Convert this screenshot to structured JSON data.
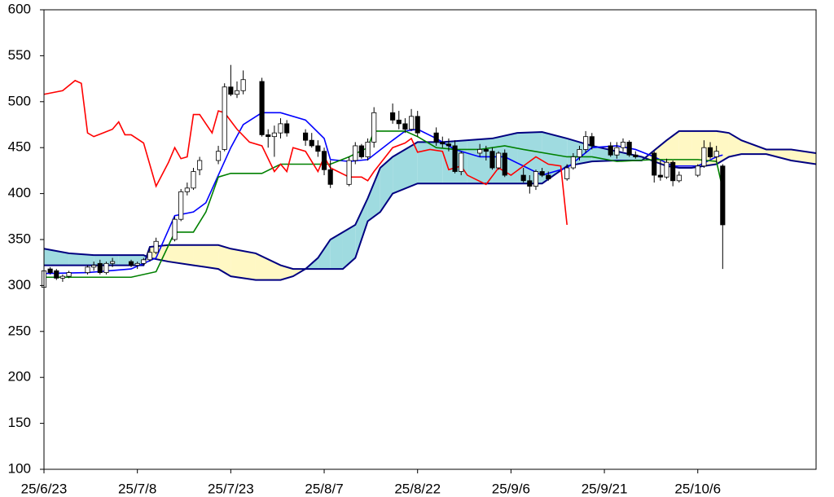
{
  "chart_data": {
    "type": "candlestick",
    "xlim": [
      0,
      124
    ],
    "xticks": [
      {
        "value": 0,
        "label": "25/6/23"
      },
      {
        "value": 15,
        "label": "25/7/8"
      },
      {
        "value": 30,
        "label": "25/7/23"
      },
      {
        "value": 45,
        "label": "25/8/7"
      },
      {
        "value": 60,
        "label": "25/8/22"
      },
      {
        "value": 75,
        "label": "25/9/6"
      },
      {
        "value": 90,
        "label": "25/9/21"
      },
      {
        "value": 105,
        "label": "25/10/6"
      }
    ],
    "ylim": [
      100,
      600
    ],
    "yticks": [
      100,
      150,
      200,
      250,
      300,
      350,
      400,
      450,
      500,
      550,
      600
    ],
    "up_color": "#ffffff",
    "down_color": "#000000",
    "x": [
      0,
      1,
      2,
      3,
      4,
      7,
      8,
      9,
      10,
      11,
      14,
      15,
      16,
      17,
      18,
      21,
      22,
      23,
      24,
      25,
      28,
      29,
      30,
      31,
      32,
      35,
      36,
      37,
      38,
      39,
      42,
      43,
      44,
      45,
      46,
      49,
      50,
      51,
      52,
      53,
      56,
      57,
      58,
      59,
      60,
      63,
      64,
      65,
      66,
      67,
      70,
      71,
      72,
      73,
      74,
      77,
      78,
      79,
      80,
      81,
      84,
      85,
      86,
      87,
      88,
      91,
      92,
      93,
      94,
      95,
      98,
      99,
      100,
      101,
      102,
      105,
      106,
      107,
      108,
      109
    ],
    "open": [
      298,
      318,
      316,
      308,
      310,
      314,
      320,
      324,
      314,
      324,
      326,
      322,
      324,
      328,
      336,
      350,
      372,
      402,
      406,
      426,
      436,
      448,
      516,
      508,
      512,
      522,
      464,
      462,
      466,
      476,
      466,
      458,
      452,
      446,
      426,
      410,
      436,
      452,
      440,
      456,
      488,
      480,
      476,
      470,
      484,
      466,
      456,
      454,
      452,
      424,
      444,
      448,
      446,
      428,
      444,
      420,
      414,
      408,
      424,
      420,
      416,
      428,
      440,
      448,
      462,
      452,
      442,
      450,
      456,
      442,
      444,
      420,
      418,
      434,
      414,
      420,
      430,
      450,
      440,
      430
    ],
    "high": [
      318,
      320,
      318,
      312,
      316,
      322,
      326,
      328,
      326,
      330,
      328,
      326,
      330,
      340,
      352,
      375,
      405,
      412,
      428,
      440,
      452,
      520,
      540,
      522,
      534,
      526,
      470,
      474,
      482,
      480,
      470,
      466,
      458,
      450,
      436,
      440,
      456,
      454,
      460,
      494,
      498,
      490,
      482,
      492,
      490,
      472,
      462,
      460,
      458,
      446,
      454,
      452,
      450,
      446,
      448,
      428,
      420,
      426,
      428,
      424,
      432,
      444,
      452,
      468,
      466,
      456,
      456,
      460,
      458,
      446,
      446,
      436,
      438,
      436,
      424,
      432,
      458,
      456,
      452,
      432
    ],
    "low": [
      296,
      312,
      306,
      304,
      308,
      312,
      316,
      312,
      312,
      320,
      320,
      318,
      322,
      326,
      334,
      348,
      370,
      398,
      404,
      420,
      432,
      446,
      506,
      504,
      508,
      462,
      450,
      440,
      460,
      462,
      452,
      450,
      440,
      420,
      406,
      408,
      432,
      438,
      436,
      450,
      476,
      470,
      466,
      468,
      462,
      452,
      450,
      446,
      422,
      420,
      440,
      436,
      426,
      426,
      418,
      412,
      400,
      404,
      418,
      414,
      414,
      426,
      436,
      444,
      448,
      440,
      438,
      446,
      440,
      438,
      412,
      414,
      416,
      408,
      412,
      418,
      428,
      438,
      434,
      318
    ],
    "close": [
      316,
      314,
      308,
      310,
      314,
      320,
      322,
      314,
      324,
      326,
      322,
      324,
      328,
      336,
      348,
      372,
      402,
      406,
      424,
      436,
      446,
      516,
      508,
      512,
      524,
      464,
      462,
      466,
      476,
      466,
      458,
      452,
      446,
      426,
      410,
      436,
      452,
      440,
      456,
      488,
      480,
      476,
      470,
      484,
      466,
      456,
      454,
      452,
      424,
      444,
      448,
      446,
      428,
      444,
      420,
      414,
      408,
      424,
      420,
      416,
      428,
      440,
      448,
      462,
      452,
      442,
      450,
      456,
      442,
      440,
      420,
      418,
      434,
      414,
      420,
      430,
      450,
      440,
      446,
      366
    ],
    "overlays": [
      {
        "color": "#0000ff",
        "x": [
          0,
          7,
          14,
          18,
          21,
          24,
          26,
          28,
          30,
          32,
          35,
          38,
          42,
          45,
          46,
          49,
          52,
          56,
          58,
          60,
          63,
          66,
          70,
          74,
          77,
          80,
          84,
          88,
          92,
          95,
          98,
          101,
          105,
          108,
          109
        ],
        "values": [
          313,
          314,
          318,
          330,
          376,
          380,
          390,
          420,
          450,
          475,
          488,
          488,
          480,
          460,
          437,
          435,
          437,
          458,
          468,
          470,
          460,
          448,
          440,
          440,
          430,
          420,
          428,
          450,
          452,
          448,
          440,
          430,
          430,
          440,
          442
        ]
      },
      {
        "color": "#008000",
        "x": [
          0,
          14,
          18,
          21,
          24,
          26,
          28,
          30,
          35,
          38,
          42,
          46,
          49,
          52,
          53,
          58,
          60,
          63,
          66,
          70,
          74,
          77,
          84,
          88,
          92,
          98,
          105,
          108,
          109
        ],
        "values": [
          309,
          309,
          315,
          358,
          358,
          380,
          418,
          422,
          422,
          432,
          432,
          432,
          440,
          450,
          468,
          468,
          462,
          450,
          448,
          448,
          452,
          448,
          440,
          440,
          435,
          437,
          437,
          435,
          405
        ]
      },
      {
        "color": "#ff0000",
        "x": [
          0,
          3,
          5,
          6,
          7,
          8,
          11,
          12,
          13,
          14,
          16,
          18,
          20,
          21,
          22,
          23,
          24,
          25,
          27,
          28,
          29,
          31,
          33,
          35,
          37,
          38,
          39,
          40,
          42,
          44,
          45,
          46,
          49,
          51,
          52,
          53,
          56,
          58,
          59,
          60,
          62,
          64,
          65,
          67,
          68,
          71,
          73,
          75,
          77,
          79,
          81,
          83,
          84
        ],
        "values": [
          508,
          512,
          523,
          520,
          466,
          462,
          470,
          478,
          464,
          464,
          455,
          408,
          434,
          450,
          438,
          440,
          486,
          486,
          466,
          490,
          488,
          470,
          456,
          452,
          424,
          432,
          424,
          450,
          446,
          424,
          440,
          428,
          418,
          418,
          414,
          424,
          450,
          455,
          460,
          445,
          448,
          446,
          426,
          430,
          420,
          410,
          428,
          420,
          430,
          440,
          432,
          430,
          366
        ]
      }
    ],
    "cloud": {
      "line_color": "#000080",
      "bull_color": "#9fdbe0",
      "bear_color": "#fff8c4",
      "x": [
        0,
        4,
        8,
        12,
        16,
        17,
        20,
        24,
        28,
        30,
        34,
        38,
        40,
        42,
        44,
        46,
        48,
        50,
        52,
        54,
        56,
        60,
        64,
        68,
        72,
        76,
        80,
        84,
        88,
        92,
        96,
        100,
        102,
        104,
        108,
        110,
        112,
        116,
        120,
        124
      ],
      "span_a": [
        340,
        335,
        333,
        333,
        333,
        330,
        326,
        322,
        318,
        310,
        306,
        306,
        310,
        318,
        330,
        350,
        358,
        366,
        395,
        428,
        440,
        456,
        456,
        458,
        460,
        466,
        467,
        460,
        452,
        446,
        440,
        430,
        428,
        428,
        432,
        440,
        443,
        443,
        436,
        432
      ],
      "span_b": [
        322,
        322,
        322,
        322,
        322,
        342,
        344,
        344,
        344,
        340,
        335,
        322,
        318,
        318,
        318,
        318,
        318,
        330,
        370,
        380,
        400,
        411,
        411,
        411,
        411,
        411,
        411,
        430,
        435,
        436,
        436,
        458,
        468,
        468,
        468,
        466,
        458,
        448,
        448,
        444
      ]
    }
  }
}
